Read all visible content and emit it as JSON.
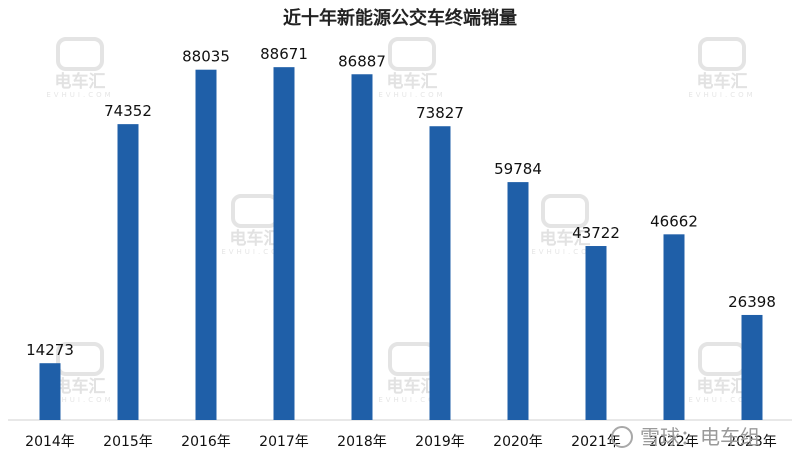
{
  "chart_data": {
    "type": "bar",
    "title": "近十年新能源公交车终端销量",
    "categories": [
      "2014年",
      "2015年",
      "2016年",
      "2017年",
      "2018年",
      "2019年",
      "2020年",
      "2021年",
      "2022年",
      "2023年"
    ],
    "values": [
      14273,
      74352,
      88035,
      88671,
      86887,
      73827,
      59784,
      43722,
      46662,
      26398
    ],
    "ylim": [
      0,
      96000
    ],
    "grid": false,
    "legend": "none",
    "bar_color": "#1f5fa8"
  },
  "watermark": {
    "text": "电车汇",
    "sub": "EVHUI.COM"
  },
  "credit": {
    "text": "雪球：电车组"
  }
}
